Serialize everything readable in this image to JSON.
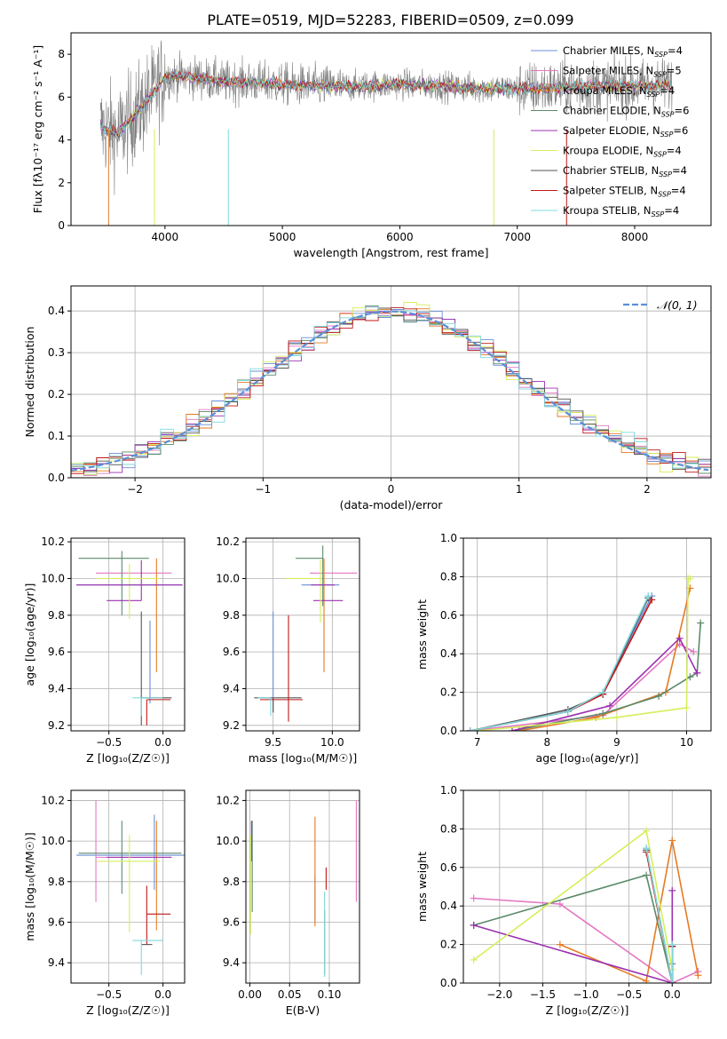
{
  "figure": {
    "title": "PLATE=0519, MJD=52283, FIBERID=0509, z=0.099"
  },
  "chart_data": [
    {
      "id": "spectrum",
      "type": "line",
      "xlabel": "wavelength [Angstrom, rest frame]",
      "ylabel": "Flux [fλ10⁻¹⁷ erg cm⁻² s⁻¹ A⁻¹]",
      "xlim": [
        3200,
        8650
      ],
      "ylim": [
        0,
        9
      ],
      "xticks": [
        4000,
        5000,
        6000,
        7000,
        8000
      ],
      "yticks": [
        0,
        2,
        4,
        6,
        8
      ],
      "grid": false,
      "legend_position": "top-right",
      "observed_color": "#808080",
      "series": [
        {
          "name": "Chabrier MILES, N_SSP=4",
          "color": "#6b8fd8"
        },
        {
          "name": "Salpeter MILES, N_SSP=5",
          "color": "#e377c2"
        },
        {
          "name": "Kroupa MILES, N_SSP=4",
          "color": "#e67a22"
        },
        {
          "name": "Chabrier ELODIE, N_SSP=6",
          "color": "#5b8a6b"
        },
        {
          "name": "Salpeter ELODIE, N_SSP=6",
          "color": "#9b30b0"
        },
        {
          "name": "Kroupa ELODIE, N_SSP=4",
          "color": "#d4ef5a"
        },
        {
          "name": "Chabrier STELIB, N_SSP=4",
          "color": "#555555"
        },
        {
          "name": "Salpeter STELIB, N_SSP=4",
          "color": "#c01818"
        },
        {
          "name": "Kroupa STELIB, N_SSP=4",
          "color": "#7fd8dd"
        }
      ],
      "continuum_points": [
        [
          3450,
          4.6
        ],
        [
          3600,
          4.3
        ],
        [
          3700,
          4.9
        ],
        [
          3800,
          5.5
        ],
        [
          3900,
          6.2
        ],
        [
          4000,
          6.9
        ],
        [
          4100,
          7.0
        ],
        [
          4300,
          6.9
        ],
        [
          4500,
          6.7
        ],
        [
          4700,
          6.7
        ],
        [
          5000,
          6.6
        ],
        [
          5300,
          6.5
        ],
        [
          5600,
          6.5
        ],
        [
          6000,
          6.6
        ],
        [
          6400,
          6.5
        ],
        [
          6800,
          6.4
        ],
        [
          7200,
          6.4
        ],
        [
          7600,
          6.5
        ],
        [
          8000,
          6.5
        ],
        [
          8300,
          6.6
        ]
      ]
    },
    {
      "id": "residuals",
      "type": "histogram",
      "xlabel": "(data-model)/error",
      "ylabel": "Normed distribution",
      "xlim": [
        -2.5,
        2.5
      ],
      "ylim": [
        0,
        0.46
      ],
      "xticks": [
        -2,
        -1,
        0,
        1,
        2
      ],
      "yticks": [
        0.0,
        0.1,
        0.2,
        0.3,
        0.4
      ],
      "grid": true,
      "legend_position": "top-right",
      "gaussian_label": "𝒩(0, 1)",
      "gaussian_color": "#5b8fd8",
      "bin_width": 0.1
    },
    {
      "id": "age_vs_Z",
      "type": "scatter",
      "xlabel": "Z [log₁₀(Z/Z☉)]",
      "ylabel": "age  [log₁₀(age/yr)]",
      "xlim": [
        -0.85,
        0.2
      ],
      "ylim": [
        9.17,
        10.22
      ],
      "xticks": [
        -0.5,
        0.0
      ],
      "yticks": [
        9.2,
        9.4,
        9.6,
        9.8,
        10.0,
        10.2
      ],
      "grid": true,
      "crosses": [
        {
          "series": 0,
          "x": -0.12,
          "y": 9.57,
          "xerr": [
            0.0,
            0.0
          ],
          "yerr": [
            0.25,
            0.2
          ]
        },
        {
          "series": 1,
          "x": -0.62,
          "y": 10.03,
          "xerr": [
            0.0,
            0.7
          ],
          "yerr": [
            0.0,
            0.0
          ]
        },
        {
          "series": 2,
          "x": -0.06,
          "y": 9.86,
          "xerr": [
            0.0,
            0.0
          ],
          "yerr": [
            0.37,
            0.25
          ]
        },
        {
          "series": 3,
          "x": -0.38,
          "y": 10.11,
          "xerr": [
            0.4,
            0.25
          ],
          "yerr": [
            0.31,
            0.04
          ]
        },
        {
          "series": 4,
          "x": -0.2,
          "y": 9.88,
          "xerr": [
            0.32,
            0.0
          ],
          "yerr": [
            0.0,
            0.22
          ]
        },
        {
          "series": 5,
          "x": -0.31,
          "y": 10.0,
          "xerr": [
            0.3,
            0.28
          ],
          "yerr": [
            0.22,
            0.08
          ]
        },
        {
          "series": 6,
          "x": -0.2,
          "y": 9.35,
          "xerr": [
            0.0,
            0.28
          ],
          "yerr": [
            0.15,
            0.47
          ]
        },
        {
          "series": 7,
          "x": -0.15,
          "y": 9.34,
          "xerr": [
            0.0,
            0.22
          ],
          "yerr": [
            0.14,
            0.0
          ]
        },
        {
          "series": 8,
          "x": -0.2,
          "y": 9.35,
          "xerr": [
            0.08,
            0.2
          ],
          "yerr": [
            0.1,
            0.0
          ]
        },
        {
          "series": 0,
          "x": -0.7,
          "y": 9.965,
          "xerr": [
            0.1,
            0.88
          ],
          "yerr": [
            0.0,
            0.0
          ]
        },
        {
          "series": 4,
          "x": -0.1,
          "y": 9.965,
          "xerr": [
            0.7,
            0.28
          ],
          "yerr": [
            0.0,
            0.0
          ]
        }
      ]
    },
    {
      "id": "age_vs_mass",
      "type": "scatter",
      "xlabel": "mass [log₁₀(M/M☉)]",
      "ylabel": "",
      "xlim": [
        9.27,
        10.23
      ],
      "ylim": [
        9.17,
        10.22
      ],
      "xticks": [
        9.5,
        10.0
      ],
      "yticks": [
        9.2,
        9.4,
        9.6,
        9.8,
        10.0,
        10.2
      ],
      "grid": true,
      "crosses": [
        {
          "series": 0,
          "x": 9.5,
          "y": 9.55,
          "xerr": [
            0.0,
            0.0
          ],
          "yerr": [
            0.28,
            0.27
          ]
        },
        {
          "series": 1,
          "x": 9.96,
          "y": 10.03,
          "xerr": [
            0.15,
            0.25
          ],
          "yerr": [
            0.0,
            0.0
          ]
        },
        {
          "series": 2,
          "x": 9.93,
          "y": 9.86,
          "xerr": [
            0.0,
            0.0
          ],
          "yerr": [
            0.37,
            0.25
          ]
        },
        {
          "series": 3,
          "x": 9.92,
          "y": 10.11,
          "xerr": [
            0.23,
            0.0
          ],
          "yerr": [
            0.26,
            0.07
          ]
        },
        {
          "series": 4,
          "x": 9.9,
          "y": 9.88,
          "xerr": [
            0.06,
            0.19
          ],
          "yerr": [
            0.0,
            0.0
          ]
        },
        {
          "series": 5,
          "x": 9.9,
          "y": 10.0,
          "xerr": [
            0.3,
            0.0
          ],
          "yerr": [
            0.24,
            0.1
          ]
        },
        {
          "series": 6,
          "x": 9.5,
          "y": 9.35,
          "xerr": [
            0.16,
            0.24
          ],
          "yerr": [
            0.08,
            0.0
          ]
        },
        {
          "series": 7,
          "x": 9.63,
          "y": 9.34,
          "xerr": [
            0.24,
            0.12
          ],
          "yerr": [
            0.12,
            0.46
          ]
        },
        {
          "series": 8,
          "x": 9.48,
          "y": 9.35,
          "xerr": [
            0.11,
            0.0
          ],
          "yerr": [
            0.1,
            0.0
          ]
        },
        {
          "series": 0,
          "x": 9.88,
          "y": 9.965,
          "xerr": [
            0.14,
            0.18
          ],
          "yerr": [
            0.0,
            0.0
          ]
        },
        {
          "series": 4,
          "x": 9.92,
          "y": 9.965,
          "xerr": [
            0.1,
            0.1
          ],
          "yerr": [
            0.0,
            0.0
          ]
        }
      ]
    },
    {
      "id": "mass_weight_vs_age",
      "type": "line",
      "xlabel": "age  [log₁₀(age/yr)]",
      "ylabel": "mass weight",
      "xlim": [
        6.8,
        10.35
      ],
      "ylim": [
        0.0,
        1.0
      ],
      "xticks": [
        7,
        8,
        9,
        10
      ],
      "yticks": [
        0.0,
        0.2,
        0.4,
        0.6,
        0.8,
        1.0
      ],
      "grid": true,
      "series": [
        {
          "series": 0,
          "x": [
            6.9,
            8.3,
            8.8,
            9.5
          ],
          "y": [
            0.0,
            0.1,
            0.2,
            0.7
          ]
        },
        {
          "series": 1,
          "x": [
            6.9,
            8.8,
            9.9,
            10.1
          ],
          "y": [
            0.0,
            0.08,
            0.45,
            0.41
          ]
        },
        {
          "series": 2,
          "x": [
            7.6,
            8.7,
            9.7,
            10.05
          ],
          "y": [
            0.0,
            0.07,
            0.2,
            0.74
          ]
        },
        {
          "series": 3,
          "x": [
            7.5,
            8.8,
            9.6,
            10.05,
            10.15,
            10.2
          ],
          "y": [
            0.0,
            0.09,
            0.18,
            0.28,
            0.3,
            0.56
          ]
        },
        {
          "series": 4,
          "x": [
            7.5,
            8.9,
            9.9,
            10.15
          ],
          "y": [
            0.0,
            0.13,
            0.48,
            0.3
          ]
        },
        {
          "series": 5,
          "x": [
            7.0,
            9.0,
            10.0,
            10.02,
            10.05
          ],
          "y": [
            0.0,
            0.07,
            0.12,
            0.79,
            0.79
          ]
        },
        {
          "series": 6,
          "x": [
            6.9,
            8.3,
            8.8,
            9.45
          ],
          "y": [
            0.0,
            0.11,
            0.19,
            0.69
          ]
        },
        {
          "series": 7,
          "x": [
            6.9,
            8.3,
            8.8,
            9.5
          ],
          "y": [
            0.0,
            0.1,
            0.19,
            0.68
          ]
        },
        {
          "series": 8,
          "x": [
            6.9,
            8.3,
            8.8,
            9.45
          ],
          "y": [
            0.0,
            0.1,
            0.2,
            0.7
          ]
        }
      ]
    },
    {
      "id": "mass_vs_Z",
      "type": "scatter",
      "xlabel": "Z [log₁₀(Z/Z☉)]",
      "ylabel": "mass [log₁₀(M/M☉)]",
      "xlim": [
        -0.85,
        0.2
      ],
      "ylim": [
        9.3,
        10.25
      ],
      "xticks": [
        -0.5,
        0.0
      ],
      "yticks": [
        9.4,
        9.6,
        9.8,
        10.0,
        10.2
      ],
      "grid": true,
      "crosses": [
        {
          "series": 0,
          "x": -0.08,
          "y": 9.93,
          "xerr": [
            0.72,
            0.28
          ],
          "yerr": [
            0.17,
            0.2
          ]
        },
        {
          "series": 1,
          "x": -0.62,
          "y": 9.92,
          "xerr": [
            0.0,
            0.7
          ],
          "yerr": [
            0.22,
            0.28
          ]
        },
        {
          "series": 2,
          "x": -0.06,
          "y": 9.93,
          "xerr": [
            0.0,
            0.0
          ],
          "yerr": [
            0.37,
            0.17
          ]
        },
        {
          "series": 3,
          "x": -0.38,
          "y": 9.94,
          "xerr": [
            0.4,
            0.55
          ],
          "yerr": [
            0.2,
            0.16
          ]
        },
        {
          "series": 4,
          "x": -0.2,
          "y": 9.92,
          "xerr": [
            0.32,
            0.28
          ],
          "yerr": [
            0.0,
            0.0
          ]
        },
        {
          "series": 5,
          "x": -0.31,
          "y": 9.9,
          "xerr": [
            0.3,
            0.28
          ],
          "yerr": [
            0.35,
            0.13
          ]
        },
        {
          "series": 6,
          "x": -0.1,
          "y": 9.49,
          "xerr": [
            0.1,
            0.0
          ],
          "yerr": [
            0.0,
            0.0
          ]
        },
        {
          "series": 7,
          "x": -0.15,
          "y": 9.64,
          "xerr": [
            0.0,
            0.22
          ],
          "yerr": [
            0.15,
            0.14
          ]
        },
        {
          "series": 8,
          "x": -0.2,
          "y": 9.51,
          "xerr": [
            0.08,
            0.2
          ],
          "yerr": [
            0.17,
            0.0
          ]
        }
      ]
    },
    {
      "id": "mass_vs_ebv",
      "type": "scatter",
      "xlabel": "E(B-V)",
      "ylabel": "",
      "xlim": [
        -0.005,
        0.138
      ],
      "ylim": [
        9.3,
        10.25
      ],
      "xticks": [
        0.0,
        0.05,
        0.1
      ],
      "yticks": [
        9.4,
        9.6,
        9.8,
        10.0,
        10.2
      ],
      "grid": true,
      "crosses": [
        {
          "series": 0,
          "x": 0.082,
          "y": 9.83,
          "xerr": [
            0.0,
            0.0
          ],
          "yerr": [
            0.23,
            0.0
          ]
        },
        {
          "series": 1,
          "x": 0.134,
          "y": 9.95,
          "xerr": [
            0.0,
            0.0
          ],
          "yerr": [
            0.25,
            0.25
          ]
        },
        {
          "series": 2,
          "x": 0.082,
          "y": 9.9,
          "xerr": [
            0.0,
            0.0
          ],
          "yerr": [
            0.32,
            0.22
          ]
        },
        {
          "series": 3,
          "x": 0.003,
          "y": 9.88,
          "xerr": [
            0.0,
            0.0
          ],
          "yerr": [
            0.23,
            0.22
          ]
        },
        {
          "series": 4,
          "x": 0.002,
          "y": 10.0,
          "xerr": [
            0.0,
            0.0
          ],
          "yerr": [
            0.1,
            0.1
          ]
        },
        {
          "series": 5,
          "x": 0.001,
          "y": 9.78,
          "xerr": [
            0.0,
            0.0
          ],
          "yerr": [
            0.24,
            0.25
          ]
        },
        {
          "series": 6,
          "x": 0.094,
          "y": 9.54,
          "xerr": [
            0.0,
            0.0
          ],
          "yerr": [
            0.2,
            0.12
          ]
        },
        {
          "series": 7,
          "x": 0.096,
          "y": 9.82,
          "xerr": [
            0.0,
            0.0
          ],
          "yerr": [
            0.06,
            0.05
          ]
        },
        {
          "series": 8,
          "x": 0.094,
          "y": 9.55,
          "xerr": [
            0.0,
            0.0
          ],
          "yerr": [
            0.22,
            0.2
          ]
        }
      ]
    },
    {
      "id": "mass_weight_vs_Z",
      "type": "line",
      "xlabel": "Z [log₁₀(Z/Z☉)]",
      "ylabel": "mass weight",
      "xlim": [
        -2.42,
        0.45
      ],
      "ylim": [
        0.0,
        1.0
      ],
      "xticks": [
        -2.0,
        -1.5,
        -1.0,
        -0.5,
        0.0
      ],
      "yticks": [
        0.0,
        0.2,
        0.4,
        0.6,
        0.8,
        1.0
      ],
      "grid": true,
      "series": [
        {
          "series": 0,
          "x": [
            -0.3,
            0.0,
            0.0
          ],
          "y": [
            0.7,
            0.0,
            0.2
          ]
        },
        {
          "series": 1,
          "x": [
            -2.3,
            -1.3,
            0.0,
            0.3
          ],
          "y": [
            0.44,
            0.41,
            0.0,
            0.06
          ]
        },
        {
          "series": 2,
          "x": [
            -1.3,
            -0.3,
            0.0,
            0.3
          ],
          "y": [
            0.2,
            0.01,
            0.74,
            0.04
          ]
        },
        {
          "series": 3,
          "x": [
            -2.3,
            -0.3,
            0.0,
            0.0
          ],
          "y": [
            0.3,
            0.56,
            0.0,
            0.1
          ]
        },
        {
          "series": 4,
          "x": [
            -2.3,
            0.0,
            0.0
          ],
          "y": [
            0.3,
            0.0,
            0.48
          ]
        },
        {
          "series": 5,
          "x": [
            -2.3,
            -0.3,
            0.0
          ],
          "y": [
            0.12,
            0.79,
            0.07
          ]
        },
        {
          "series": 6,
          "x": [
            -0.3,
            0.0,
            0.0
          ],
          "y": [
            0.69,
            0.0,
            0.19
          ]
        },
        {
          "series": 7,
          "x": [
            -0.3,
            0.0,
            0.0
          ],
          "y": [
            0.68,
            0.0,
            0.19
          ]
        },
        {
          "series": 8,
          "x": [
            -0.3,
            0.0,
            0.0
          ],
          "y": [
            0.7,
            0.0,
            0.2
          ]
        }
      ]
    }
  ]
}
